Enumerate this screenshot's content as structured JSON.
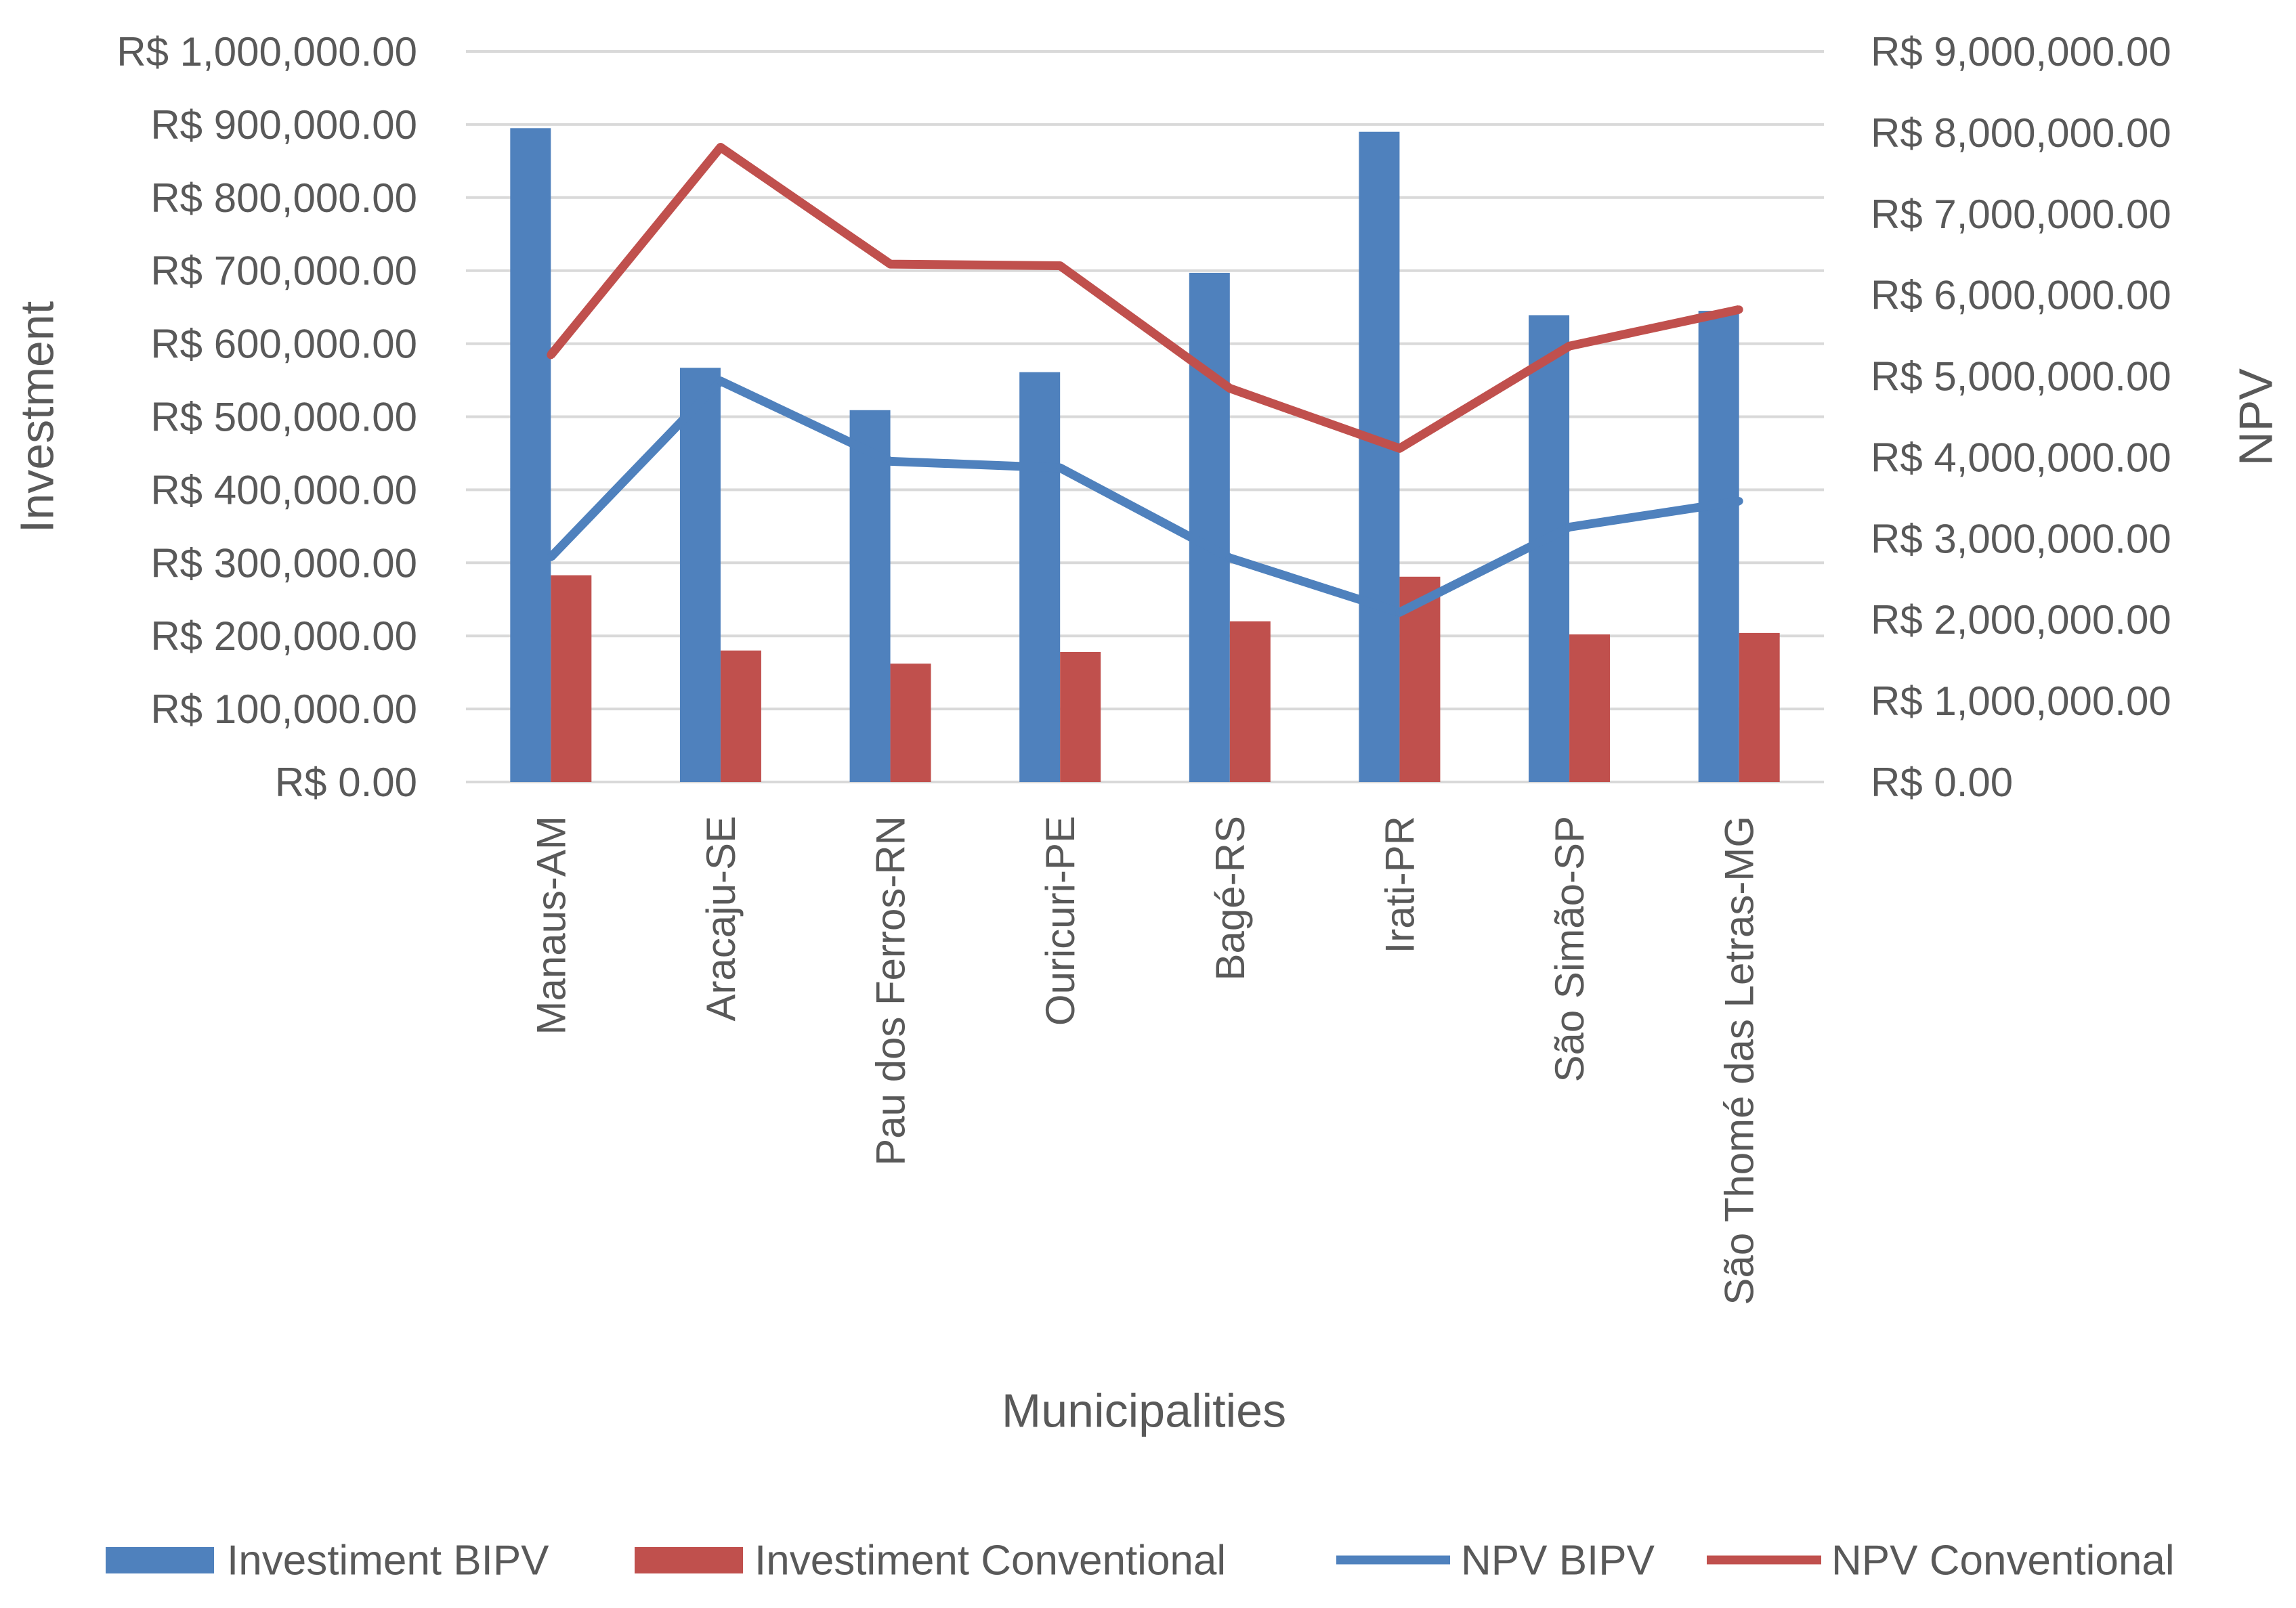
{
  "chart_data": {
    "type": "bar",
    "xlabel": "Municipalities",
    "ylabel": "Investment",
    "y2label": "NPV",
    "categories": [
      "Manaus-AM",
      "Aracaju-SE",
      "Pau dos Ferros-RN",
      "Ouricuri-PE",
      "Bagé-RS",
      "Irati-PR",
      "São Simão-SP",
      "São Thomé das Letras-MG"
    ],
    "ylim": [
      0,
      1000000
    ],
    "y2lim": [
      0,
      9000000
    ],
    "y_ticks": [
      0,
      100000,
      200000,
      300000,
      400000,
      500000,
      600000,
      700000,
      800000,
      900000,
      1000000
    ],
    "y_tick_labels": [
      "R$ 0.00",
      "R$ 100,000.00",
      "R$ 200,000.00",
      "R$ 300,000.00",
      "R$ 400,000.00",
      "R$ 500,000.00",
      "R$ 600,000.00",
      "R$ 700,000.00",
      "R$ 800,000.00",
      "R$ 900,000.00",
      "R$ 1,000,000.00"
    ],
    "y2_ticks": [
      0,
      1000000,
      2000000,
      3000000,
      4000000,
      5000000,
      6000000,
      7000000,
      8000000,
      9000000
    ],
    "y2_tick_labels": [
      "R$ 0.00",
      "R$ 1,000,000.00",
      "R$ 2,000,000.00",
      "R$ 3,000,000.00",
      "R$ 4,000,000.00",
      "R$ 5,000,000.00",
      "R$ 6,000,000.00",
      "R$ 7,000,000.00",
      "R$ 8,000,000.00",
      "R$ 9,000,000.00"
    ],
    "grid": true,
    "legend_position": "bottom",
    "series": [
      {
        "name": "Investiment BIPV",
        "type": "bar",
        "axis": "left",
        "color": "#4f81bd",
        "values": [
          895000,
          567000,
          509000,
          561000,
          697000,
          890000,
          639000,
          645000
        ]
      },
      {
        "name": "Investiment Conventional",
        "type": "bar",
        "axis": "left",
        "color": "#c0504d",
        "values": [
          283000,
          180000,
          162000,
          178000,
          220000,
          281000,
          202000,
          204000
        ]
      },
      {
        "name": "NPV BIPV",
        "type": "line",
        "axis": "right",
        "color": "#4f81bd",
        "values": [
          2770000,
          4940000,
          3950000,
          3870000,
          2760000,
          2090000,
          3140000,
          3460000
        ]
      },
      {
        "name": "NPV Conventional",
        "type": "line",
        "axis": "right",
        "color": "#c0504d",
        "values": [
          5260000,
          7820000,
          6380000,
          6360000,
          4850000,
          4110000,
          5370000,
          5820000
        ]
      }
    ]
  }
}
